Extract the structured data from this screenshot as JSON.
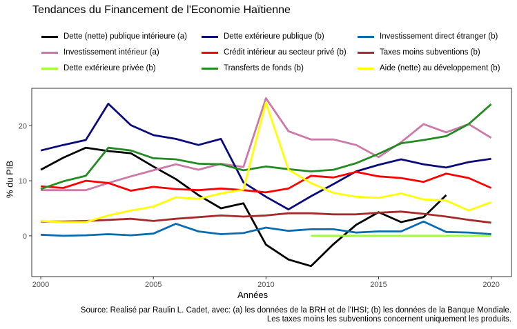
{
  "chart_data": {
    "type": "line",
    "title": "Tendances du Financement de l'Economie Haïtienne",
    "xlabel": "Années",
    "ylabel": "% du PIB",
    "xlim": [
      1999.6,
      2020.9
    ],
    "ylim": [
      -7.4,
      26.8
    ],
    "xticks": [
      2000,
      2005,
      2010,
      2015,
      2020
    ],
    "yticks": [
      0,
      10,
      20
    ],
    "grid": false,
    "legend_position": "top",
    "source_line1": "Source: Realisé par Raulin L. Cadet, avec: (a) les données de la BRH et de l'IHSI; (b) les données de la Banque Mondiale.",
    "source_line2": "Les taxes moins les subventions concernent uniquement les produits.",
    "series": [
      {
        "name": "Dette (nette) publique intérieure (a)",
        "color": "#000000",
        "x": [
          2000,
          2001,
          2002,
          2003,
          2004,
          2005,
          2006,
          2007,
          2008,
          2009,
          2010,
          2011,
          2012,
          2013,
          2014,
          2015,
          2016,
          2017,
          2018
        ],
        "values": [
          12.0,
          14.2,
          16.0,
          15.4,
          15.0,
          12.6,
          10.3,
          7.4,
          5.0,
          5.9,
          -1.6,
          -4.3,
          -5.5,
          -1.5,
          2.0,
          4.3,
          2.5,
          3.4,
          7.4
        ]
      },
      {
        "name": "Investissement intérieur (a)",
        "color": "#cc79a7",
        "x": [
          2000,
          2001,
          2002,
          2003,
          2004,
          2005,
          2006,
          2007,
          2008,
          2009,
          2010,
          2011,
          2012,
          2013,
          2014,
          2015,
          2016,
          2017,
          2018,
          2019,
          2020
        ],
        "values": [
          8.3,
          8.3,
          8.3,
          9.6,
          10.8,
          11.9,
          13.0,
          12.0,
          13.1,
          12.5,
          25.0,
          19.0,
          17.5,
          17.5,
          16.5,
          14.3,
          17.0,
          20.3,
          18.8,
          20.3,
          17.8
        ]
      },
      {
        "name": "Dette extérieure privée (b)",
        "color": "#9aff33",
        "x": [
          2012,
          2013,
          2014,
          2015,
          2016,
          2017,
          2018,
          2019,
          2020
        ],
        "values": [
          0,
          0,
          0,
          0,
          0,
          0,
          0,
          0,
          0
        ]
      },
      {
        "name": "Dette extérieure publique (b)",
        "color": "#0a0a7a",
        "x": [
          2000,
          2001,
          2002,
          2003,
          2004,
          2005,
          2006,
          2007,
          2008,
          2009,
          2010,
          2011,
          2012,
          2013,
          2014,
          2015,
          2016,
          2017,
          2018,
          2019,
          2020
        ],
        "values": [
          15.5,
          16.5,
          17.4,
          24.0,
          20.1,
          18.3,
          17.6,
          16.5,
          17.6,
          9.7,
          7.1,
          4.8,
          7.2,
          9.4,
          11.7,
          12.9,
          13.9,
          13.0,
          12.4,
          13.4,
          14.0
        ]
      },
      {
        "name": "Crédit intérieur au secteur privé (b)",
        "color": "#ff0000",
        "x": [
          2000,
          2001,
          2002,
          2003,
          2004,
          2005,
          2006,
          2007,
          2008,
          2009,
          2010,
          2011,
          2012,
          2013,
          2014,
          2015,
          2016,
          2017,
          2018,
          2019,
          2020
        ],
        "values": [
          9.0,
          8.7,
          10.0,
          9.6,
          8.2,
          8.9,
          8.5,
          8.3,
          8.6,
          8.3,
          7.9,
          8.6,
          10.9,
          10.6,
          11.6,
          10.8,
          10.5,
          9.8,
          11.3,
          10.5,
          8.7
        ]
      },
      {
        "name": "Transferts de fonds (b)",
        "color": "#228b22",
        "x": [
          2000,
          2001,
          2002,
          2003,
          2004,
          2005,
          2006,
          2007,
          2008,
          2009,
          2010,
          2011,
          2012,
          2013,
          2014,
          2015,
          2016,
          2017,
          2018,
          2019,
          2020
        ],
        "values": [
          8.5,
          9.9,
          10.9,
          16.0,
          15.5,
          14.1,
          13.9,
          13.1,
          13.0,
          11.9,
          12.6,
          12.1,
          11.7,
          12.0,
          13.2,
          14.9,
          16.8,
          17.4,
          18.1,
          20.3,
          23.9
        ]
      },
      {
        "name": "Investissement direct étranger (b)",
        "color": "#0a6cb0",
        "x": [
          2000,
          2001,
          2002,
          2003,
          2004,
          2005,
          2006,
          2007,
          2008,
          2009,
          2010,
          2011,
          2012,
          2013,
          2014,
          2015,
          2016,
          2017,
          2018,
          2019,
          2020
        ],
        "values": [
          0.2,
          0.0,
          0.1,
          0.3,
          0.1,
          0.4,
          2.2,
          0.8,
          0.3,
          0.5,
          1.5,
          0.9,
          1.2,
          1.2,
          0.6,
          0.8,
          0.8,
          2.6,
          0.7,
          0.6,
          0.3
        ]
      },
      {
        "name": "Taxes moins subventions (b)",
        "color": "#a52a2a",
        "x": [
          2000,
          2001,
          2002,
          2003,
          2004,
          2005,
          2006,
          2007,
          2008,
          2009,
          2010,
          2011,
          2012,
          2013,
          2014,
          2015,
          2016,
          2017,
          2018,
          2019,
          2020
        ],
        "values": [
          2.6,
          2.6,
          2.7,
          2.9,
          3.1,
          2.7,
          3.1,
          3.4,
          3.7,
          3.5,
          3.7,
          4.1,
          4.1,
          3.9,
          3.9,
          4.2,
          4.4,
          4.0,
          3.5,
          2.9,
          2.4
        ]
      },
      {
        "name": "Aide (nette) au développement (b)",
        "color": "#ffff00",
        "x": [
          2000,
          2001,
          2002,
          2003,
          2004,
          2005,
          2006,
          2007,
          2008,
          2009,
          2010,
          2011,
          2012,
          2013,
          2014,
          2015,
          2016,
          2017,
          2018,
          2019,
          2020
        ],
        "values": [
          2.7,
          2.5,
          2.5,
          3.7,
          4.6,
          5.3,
          7.0,
          6.7,
          7.7,
          8.4,
          24.2,
          12.0,
          9.6,
          7.8,
          7.1,
          6.9,
          7.7,
          6.6,
          6.4,
          4.6,
          6.1
        ]
      }
    ]
  }
}
